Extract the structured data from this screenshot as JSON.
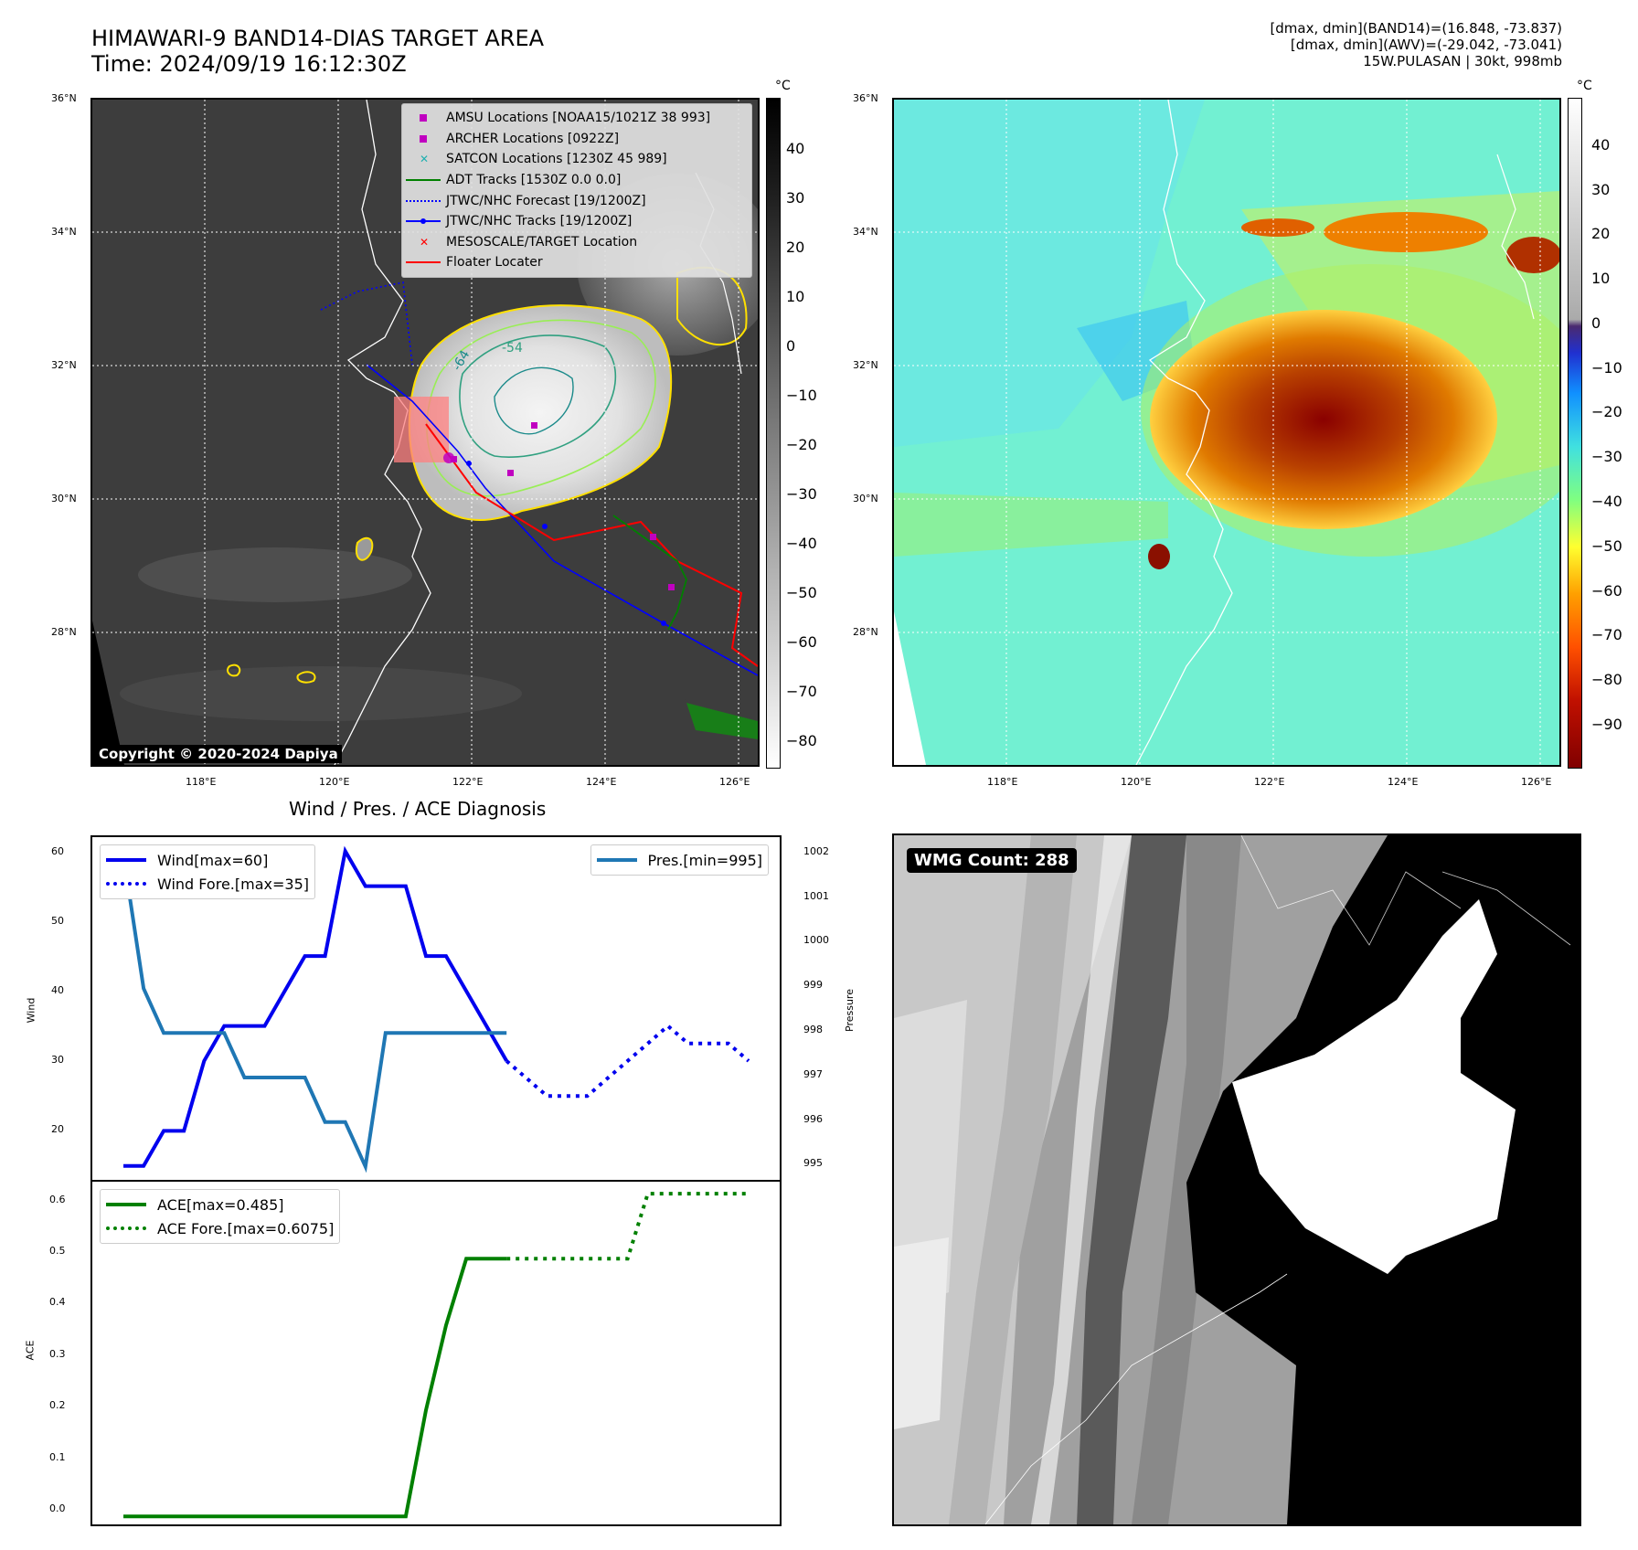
{
  "header": {
    "title_line1": "HIMAWARI-9 BAND14-DIAS TARGET AREA",
    "title_line2": "Time: 2024/09/19 16:12:30Z",
    "info_line1": "[dmax, dmin](BAND14)=(16.848, -73.837)",
    "info_line2": "[dmax, dmin](AWV)=(-29.042, -73.041)",
    "info_line3": "15W.PULASAN | 30kt, 998mb"
  },
  "map_axes": {
    "lat_labels": [
      "36°N",
      "34°N",
      "32°N",
      "30°N",
      "28°N"
    ],
    "lon_labels": [
      "118°E",
      "120°E",
      "122°E",
      "124°E",
      "126°E"
    ]
  },
  "ir_panel": {
    "copyright": "Copyright © 2020-2024 Dapiya",
    "contour_labels": [
      "-54",
      "-64"
    ],
    "legend": [
      {
        "label": "AMSU Locations [NOAA15/1021Z 38 993]",
        "symbol": "square",
        "color": "#c000c0"
      },
      {
        "label": "ARCHER Locations [0922Z]",
        "symbol": "square",
        "color": "#c000c0"
      },
      {
        "label": "SATCON Locations [1230Z 45 989]",
        "symbol": "x",
        "color": "#20b0b0"
      },
      {
        "label": "ADT Tracks [1530Z 0.0 0.0]",
        "symbol": "line",
        "color": "#008000"
      },
      {
        "label": "JTWC/NHC Forecast [19/1200Z]",
        "symbol": "dotted",
        "color": "#0000ff"
      },
      {
        "label": "JTWC/NHC Tracks [19/1200Z]",
        "symbol": "line-dot",
        "color": "#0000ff"
      },
      {
        "label": "MESOSCALE/TARGET Location",
        "symbol": "x",
        "color": "#ff0000"
      },
      {
        "label": "Floater Locater",
        "symbol": "line",
        "color": "#ff0000"
      }
    ]
  },
  "colorbar_ir": {
    "unit": "°C",
    "ticks": [
      "40",
      "30",
      "20",
      "10",
      "0",
      "−10",
      "−20",
      "−30",
      "−40",
      "−50",
      "−60",
      "−70",
      "−80"
    ]
  },
  "colorbar_awv": {
    "unit": "°C",
    "ticks": [
      "40",
      "30",
      "20",
      "10",
      "0",
      "−10",
      "−20",
      "−30",
      "−40",
      "−50",
      "−60",
      "−70",
      "−80",
      "−90"
    ]
  },
  "wind_chart": {
    "title": "Wind / Pres. / ACE Diagnosis",
    "ylabel_left": "Wind",
    "ylabel_right": "Pressure",
    "legend_left": [
      "Wind[max=60]",
      "Wind Fore.[max=35]"
    ],
    "legend_right": [
      "Pres.[min=995]"
    ],
    "wind_ticks": [
      "60",
      "50",
      "40",
      "30",
      "20"
    ],
    "pres_ticks": [
      "1002",
      "1001",
      "1000",
      "999",
      "998",
      "997",
      "996",
      "995"
    ]
  },
  "ace_chart": {
    "ylabel": "ACE",
    "legend": [
      "ACE[max=0.485]",
      "ACE Fore.[max=0.6075]"
    ],
    "ticks": [
      "0.6",
      "0.5",
      "0.4",
      "0.3",
      "0.2",
      "0.1",
      "0.0"
    ]
  },
  "wmg_panel": {
    "badge": "WMG Count: 288"
  },
  "chart_data": [
    {
      "type": "line",
      "title": "Wind / Pres. / ACE Diagnosis",
      "ylabel": "Wind",
      "ylim": [
        13,
        62
      ],
      "series": [
        {
          "name": "Wind[max=60]",
          "color": "#0000ee",
          "style": "solid",
          "x": [
            0,
            1,
            2,
            3,
            4,
            5,
            6,
            7,
            8,
            9,
            10,
            11,
            12,
            13,
            14,
            15,
            16,
            17,
            18,
            19
          ],
          "y": [
            15,
            15,
            20,
            20,
            30,
            35,
            35,
            35,
            40,
            45,
            45,
            60,
            55,
            55,
            55,
            45,
            45,
            40,
            35,
            30
          ]
        },
        {
          "name": "Wind Fore.[max=35]",
          "color": "#0000ee",
          "style": "dotted",
          "x": [
            19,
            20,
            21,
            22,
            23,
            24,
            25,
            26,
            27,
            28,
            29,
            30,
            31
          ],
          "y": [
            30,
            27.5,
            25,
            25,
            25,
            27.5,
            30,
            32.5,
            35,
            32.5,
            32.5,
            32.5,
            30
          ]
        }
      ]
    },
    {
      "type": "line",
      "ylabel": "Pressure",
      "ylim": [
        994.7,
        1002.4
      ],
      "series": [
        {
          "name": "Pres.[min=995]",
          "color": "#1f77b4",
          "style": "solid",
          "x": [
            0,
            1,
            2,
            3,
            4,
            5,
            6,
            7,
            8,
            9,
            10,
            11,
            12,
            13,
            14,
            15,
            16,
            17,
            18,
            19
          ],
          "y": [
            1002,
            999,
            998,
            998,
            998,
            998,
            997,
            997,
            997,
            997,
            996,
            996,
            995,
            998,
            998,
            998,
            998,
            998,
            998,
            998
          ]
        }
      ]
    },
    {
      "type": "line",
      "ylabel": "ACE",
      "ylim": [
        -0.015,
        0.63
      ],
      "series": [
        {
          "name": "ACE[max=0.485]",
          "color": "#008000",
          "style": "solid",
          "x": [
            0,
            1,
            2,
            3,
            4,
            5,
            6,
            7,
            8,
            9,
            10,
            11,
            12,
            13,
            14,
            15,
            16,
            17,
            18,
            19
          ],
          "y": [
            0,
            0,
            0,
            0,
            0,
            0,
            0,
            0,
            0,
            0,
            0,
            0,
            0,
            0,
            0,
            0.2,
            0.36,
            0.485,
            0.485,
            0.485
          ]
        },
        {
          "name": "ACE Fore.[max=0.6075]",
          "color": "#008000",
          "style": "dotted",
          "x": [
            19,
            20,
            21,
            22,
            23,
            24,
            25,
            26,
            27,
            28,
            29,
            30,
            31
          ],
          "y": [
            0.485,
            0.485,
            0.485,
            0.485,
            0.485,
            0.485,
            0.485,
            0.6075,
            0.6075,
            0.6075,
            0.6075,
            0.6075,
            0.6075
          ]
        }
      ]
    }
  ]
}
